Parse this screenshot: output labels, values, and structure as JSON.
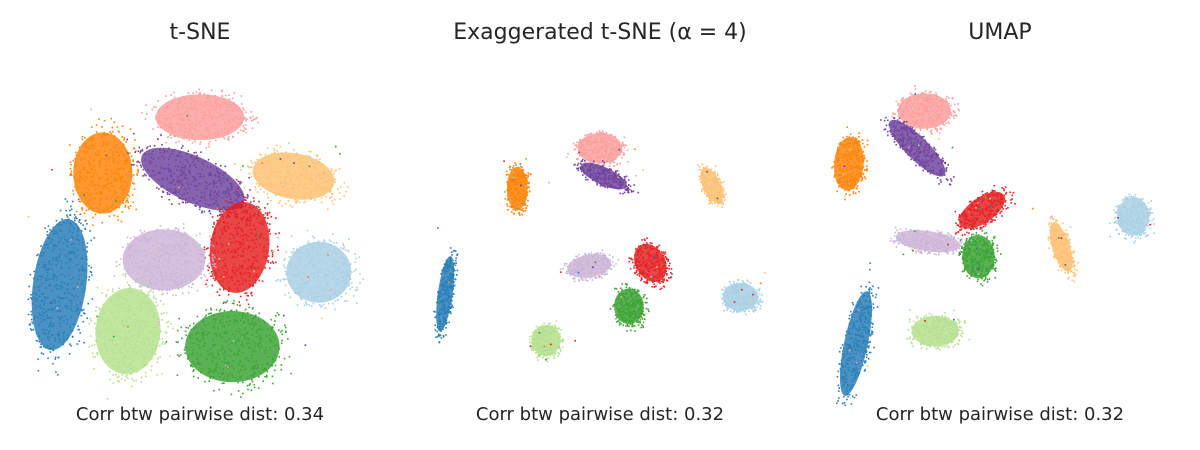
{
  "chart_data": [
    {
      "type": "scatter",
      "title": "t-SNE",
      "annotation": "Corr btw pairwise dist: 0.34",
      "xlim": [
        0,
        10
      ],
      "ylim": [
        0,
        10
      ],
      "grid": false,
      "clusters": [
        {
          "color": "#fb9a99",
          "x": 5.0,
          "y": 8.8,
          "rx": 1.5,
          "ry": 0.9,
          "angle": 0
        },
        {
          "color": "#ff7f00",
          "x": 2.3,
          "y": 7.0,
          "rx": 1.0,
          "ry": 1.6,
          "angle": 0
        },
        {
          "color": "#6a3d9a",
          "x": 4.8,
          "y": 6.8,
          "rx": 1.9,
          "ry": 0.9,
          "angle": -25
        },
        {
          "color": "#fdbf6f",
          "x": 7.6,
          "y": 6.9,
          "rx": 1.4,
          "ry": 0.9,
          "angle": -10
        },
        {
          "color": "#1f78b4",
          "x": 1.1,
          "y": 3.4,
          "rx": 0.9,
          "ry": 2.6,
          "angle": -8
        },
        {
          "color": "#e31a1c",
          "x": 6.1,
          "y": 4.6,
          "rx": 1.0,
          "ry": 1.8,
          "angle": -8
        },
        {
          "color": "#cab2d6",
          "x": 4.0,
          "y": 4.2,
          "rx": 1.4,
          "ry": 1.2,
          "angle": 0
        },
        {
          "color": "#a6cee3",
          "x": 8.3,
          "y": 3.8,
          "rx": 1.1,
          "ry": 1.2,
          "angle": 0
        },
        {
          "color": "#b2df8a",
          "x": 3.0,
          "y": 1.9,
          "rx": 1.1,
          "ry": 1.7,
          "angle": -5
        },
        {
          "color": "#33a02c",
          "x": 5.9,
          "y": 1.4,
          "rx": 1.6,
          "ry": 1.4,
          "angle": 0
        }
      ]
    },
    {
      "type": "scatter",
      "title": "Exaggerated t-SNE (α = 4)",
      "annotation": "Corr btw pairwise dist: 0.32",
      "xlim": [
        0,
        10
      ],
      "ylim": [
        0,
        10
      ],
      "grid": false,
      "clusters": [
        {
          "color": "#fb9a99",
          "x": 5.0,
          "y": 7.8,
          "rx": 0.75,
          "ry": 0.6,
          "angle": 0
        },
        {
          "color": "#6a3d9a",
          "x": 5.1,
          "y": 6.9,
          "rx": 0.85,
          "ry": 0.35,
          "angle": -25
        },
        {
          "color": "#ff7f00",
          "x": 2.7,
          "y": 6.5,
          "rx": 0.35,
          "ry": 0.85,
          "angle": 0
        },
        {
          "color": "#fdbf6f",
          "x": 8.1,
          "y": 6.6,
          "rx": 0.3,
          "ry": 0.75,
          "angle": 25
        },
        {
          "color": "#1f78b4",
          "x": 0.7,
          "y": 3.1,
          "rx": 0.25,
          "ry": 1.5,
          "angle": -8
        },
        {
          "color": "#e31a1c",
          "x": 6.4,
          "y": 4.1,
          "rx": 0.5,
          "ry": 0.8,
          "angle": 30
        },
        {
          "color": "#cab2d6",
          "x": 4.7,
          "y": 4.0,
          "rx": 0.75,
          "ry": 0.45,
          "angle": 10
        },
        {
          "color": "#a6cee3",
          "x": 8.9,
          "y": 3.0,
          "rx": 0.6,
          "ry": 0.55,
          "angle": 0
        },
        {
          "color": "#33a02c",
          "x": 5.8,
          "y": 2.7,
          "rx": 0.5,
          "ry": 0.7,
          "angle": 0
        },
        {
          "color": "#b2df8a",
          "x": 3.5,
          "y": 1.6,
          "rx": 0.5,
          "ry": 0.6,
          "angle": -10
        }
      ]
    },
    {
      "type": "scatter",
      "title": "UMAP",
      "annotation": "Corr btw pairwise dist: 0.32",
      "xlim": [
        0,
        10
      ],
      "ylim": [
        0,
        10
      ],
      "grid": false,
      "clusters": [
        {
          "color": "#fb9a99",
          "x": 2.9,
          "y": 9.0,
          "rx": 0.9,
          "ry": 0.7,
          "angle": 0
        },
        {
          "color": "#6a3d9a",
          "x": 2.7,
          "y": 7.8,
          "rx": 1.3,
          "ry": 0.45,
          "angle": -45
        },
        {
          "color": "#ff7f00",
          "x": 0.8,
          "y": 7.3,
          "rx": 0.5,
          "ry": 1.05,
          "angle": -5
        },
        {
          "color": "#e31a1c",
          "x": 4.5,
          "y": 5.8,
          "rx": 0.9,
          "ry": 0.5,
          "angle": 35
        },
        {
          "color": "#cab2d6",
          "x": 3.0,
          "y": 4.8,
          "rx": 1.1,
          "ry": 0.4,
          "angle": -8
        },
        {
          "color": "#33a02c",
          "x": 4.4,
          "y": 4.3,
          "rx": 0.55,
          "ry": 0.85,
          "angle": 0
        },
        {
          "color": "#fdbf6f",
          "x": 6.7,
          "y": 4.6,
          "rx": 0.3,
          "ry": 1.0,
          "angle": 18
        },
        {
          "color": "#a6cee3",
          "x": 8.7,
          "y": 5.6,
          "rx": 0.55,
          "ry": 0.75,
          "angle": 0
        },
        {
          "color": "#1f78b4",
          "x": 1.0,
          "y": 1.5,
          "rx": 0.4,
          "ry": 2.1,
          "angle": -12
        },
        {
          "color": "#b2df8a",
          "x": 3.2,
          "y": 1.9,
          "rx": 0.8,
          "ry": 0.6,
          "angle": 0
        }
      ]
    }
  ]
}
